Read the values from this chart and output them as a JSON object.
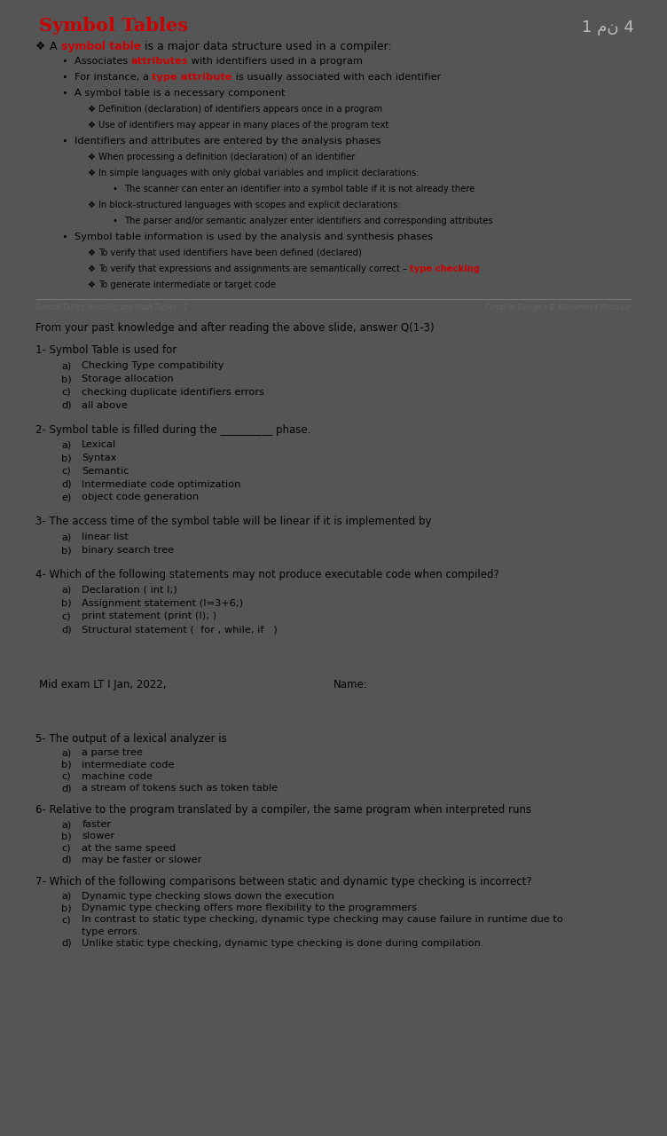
{
  "page1_bg": "#ffffff",
  "page2_bg": "#ffffff",
  "fig_bg": "#555555",
  "title": "Symbol Tables",
  "title_color": "#cc0000",
  "title_fontsize": 15,
  "page_label": "1 من 4",
  "page_label_color": "#bbbbbb",
  "slide_lines": [
    {
      "indent": 0,
      "bullet": "❖",
      "text_parts": [
        {
          "text": "A ",
          "bold": false,
          "color": "#000000"
        },
        {
          "text": "symbol table",
          "bold": true,
          "color": "#cc0000"
        },
        {
          "text": " is a major data structure used in a compiler:",
          "bold": false,
          "color": "#000000"
        }
      ]
    },
    {
      "indent": 1,
      "bullet": "•",
      "text_parts": [
        {
          "text": "Associates ",
          "bold": false,
          "color": "#000000"
        },
        {
          "text": "attributes",
          "bold": true,
          "color": "#cc0000"
        },
        {
          "text": " with identifiers used in a program",
          "bold": false,
          "color": "#000000"
        }
      ]
    },
    {
      "indent": 1,
      "bullet": "•",
      "text_parts": [
        {
          "text": "For instance, a ",
          "bold": false,
          "color": "#000000"
        },
        {
          "text": "type attribute",
          "bold": true,
          "color": "#cc0000"
        },
        {
          "text": " is usually associated with each identifier",
          "bold": false,
          "color": "#000000"
        }
      ]
    },
    {
      "indent": 1,
      "bullet": "•",
      "text_parts": [
        {
          "text": "A symbol table is a necessary component",
          "bold": false,
          "color": "#000000"
        }
      ]
    },
    {
      "indent": 2,
      "bullet": "❖",
      "text_parts": [
        {
          "text": "Definition (declaration) of identifiers appears once in a program",
          "bold": false,
          "color": "#000000"
        }
      ]
    },
    {
      "indent": 2,
      "bullet": "❖",
      "text_parts": [
        {
          "text": "Use of identifiers may appear in many places of the program text",
          "bold": false,
          "color": "#000000"
        }
      ]
    },
    {
      "indent": 1,
      "bullet": "•",
      "text_parts": [
        {
          "text": "Identifiers and attributes are entered by the analysis phases",
          "bold": false,
          "color": "#000000"
        }
      ]
    },
    {
      "indent": 2,
      "bullet": "❖",
      "text_parts": [
        {
          "text": "When processing a definition (declaration) of an identifier",
          "bold": false,
          "color": "#000000"
        }
      ]
    },
    {
      "indent": 2,
      "bullet": "❖",
      "text_parts": [
        {
          "text": "In simple languages with only global variables and implicit declarations:",
          "bold": false,
          "color": "#000000"
        }
      ]
    },
    {
      "indent": 3,
      "bullet": "•",
      "text_parts": [
        {
          "text": "The scanner can enter an identifier into a symbol table if it is not already there",
          "bold": false,
          "color": "#000000"
        }
      ]
    },
    {
      "indent": 2,
      "bullet": "❖",
      "text_parts": [
        {
          "text": "In block-structured languages with scopes and explicit declarations:",
          "bold": false,
          "color": "#000000"
        }
      ]
    },
    {
      "indent": 3,
      "bullet": "•",
      "text_parts": [
        {
          "text": "The parser and/or semantic analyzer enter identifiers and corresponding attributes",
          "bold": false,
          "color": "#000000"
        }
      ]
    },
    {
      "indent": 1,
      "bullet": "•",
      "text_parts": [
        {
          "text": "Symbol table information is used by the analysis and synthesis phases",
          "bold": false,
          "color": "#000000"
        }
      ]
    },
    {
      "indent": 2,
      "bullet": "❖",
      "text_parts": [
        {
          "text": "To verify that used identifiers have been defined (declared)",
          "bold": false,
          "color": "#000000"
        }
      ]
    },
    {
      "indent": 2,
      "bullet": "❖",
      "text_parts": [
        {
          "text": "To verify that expressions and assignments are semantically correct – ",
          "bold": false,
          "color": "#000000"
        },
        {
          "text": "type checking",
          "bold": true,
          "color": "#cc0000"
        }
      ]
    },
    {
      "indent": 2,
      "bullet": "❖",
      "text_parts": [
        {
          "text": "To generate intermediate or target code",
          "bold": false,
          "color": "#000000"
        }
      ]
    }
  ],
  "footer_left": "Symbol Tables, Hashing, and Hash Tables – 1",
  "footer_right": "Compiler Design – © Muhammed Mudawar",
  "intro_text": "From your past knowledge and after reading the above slide, answer Q(1-3)",
  "questions": [
    {
      "number": "1-",
      "text": "Symbol Table is used for",
      "options": [
        {
          "letter": "a)",
          "text": "Checking Type compatibility"
        },
        {
          "letter": "b)",
          "text": "Storage allocation"
        },
        {
          "letter": "c)",
          "text": "checking duplicate identifiers errors"
        },
        {
          "letter": "d)",
          "text": "all above"
        }
      ]
    },
    {
      "number": "2-",
      "text": "Symbol table is filled during the __________ phase.",
      "options": [
        {
          "letter": "a)",
          "text": "Lexical"
        },
        {
          "letter": "b)",
          "text": "Syntax"
        },
        {
          "letter": "c)",
          "text": "Semantic"
        },
        {
          "letter": "d)",
          "text": "Intermediate code optimization"
        },
        {
          "letter": "e)",
          "text": "object code generation"
        }
      ]
    },
    {
      "number": "3-",
      "text": "The access time of the symbol table will be linear if it is implemented by",
      "options": [
        {
          "letter": "a)",
          "text": "linear list"
        },
        {
          "letter": "b)",
          "text": "binary search tree"
        }
      ]
    },
    {
      "number": "4-",
      "text": "Which of the following statements may not produce executable code when compiled?",
      "options": [
        {
          "letter": "a)",
          "text": "Declaration ( int I;)"
        },
        {
          "letter": "b)",
          "text": "Assignment statement (I=3+6;)"
        },
        {
          "letter": "c)",
          "text": "print statement (print (I); )"
        },
        {
          "letter": "d)",
          "text": "Structural statement (  for , while, if   )"
        }
      ]
    }
  ],
  "mid_exam_left": "Mid exam LT I Jan, 2022,",
  "mid_exam_right": "Name:",
  "page2_questions": [
    {
      "number": "5-",
      "text": "The output of a lexical analyzer is",
      "options": [
        {
          "letter": "a)",
          "text": "a parse tree"
        },
        {
          "letter": "b)",
          "text": "intermediate code"
        },
        {
          "letter": "c)",
          "text": "machine code"
        },
        {
          "letter": "d)",
          "text": "a stream of tokens such as token table"
        }
      ]
    },
    {
      "number": "6-",
      "text": "Relative to the program translated by a compiler, the same program when interpreted runs",
      "options": [
        {
          "letter": "a)",
          "text": "faster"
        },
        {
          "letter": "b)",
          "text": "slower"
        },
        {
          "letter": "c)",
          "text": "at the same speed"
        },
        {
          "letter": "d)",
          "text": "may be faster or slower"
        }
      ]
    },
    {
      "number": "7-",
      "text": "Which of the following comparisons between static and dynamic type checking is incorrect?",
      "options": [
        {
          "letter": "a)",
          "text": "Dynamic type checking slows down the execution"
        },
        {
          "letter": "b)",
          "text": "Dynamic type checking offers more flexibility to the programmers."
        },
        {
          "letter": "c)",
          "text": "In contrast to static type checking, dynamic type checking may cause failure in runtime due to\ntype errors."
        },
        {
          "letter": "d)",
          "text": "Unlike static type checking, dynamic type checking is done during compilation."
        }
      ]
    }
  ],
  "indent_bx": {
    "0": 0.035,
    "1": 0.075,
    "2": 0.115,
    "3": 0.155
  },
  "text_offset": {
    "0": 0.022,
    "1": 0.02,
    "2": 0.018,
    "3": 0.018
  },
  "font_s": {
    "0": 9.0,
    "1": 8.2,
    "2": 7.2,
    "3": 7.2
  }
}
